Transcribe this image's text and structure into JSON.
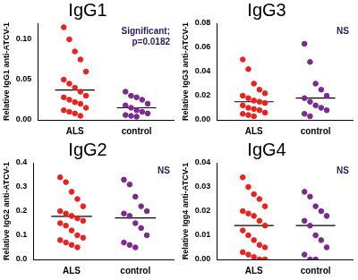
{
  "chart_data": [
    {
      "type": "strip",
      "title": "IgG1",
      "y_label": "Relative IgG1 anti-ATCV-1",
      "categories": [
        "ALS",
        "control"
      ],
      "values": [
        [
          0.115,
          0.1,
          0.085,
          0.075,
          0.06,
          0.05,
          0.045,
          0.04,
          0.035,
          0.03,
          0.028,
          0.025,
          0.022,
          0.02,
          0.015,
          0.012,
          0.01,
          0.008,
          0.005
        ],
        [
          0.035,
          0.03,
          0.028,
          0.025,
          0.02,
          0.018,
          0.015,
          0.012,
          0.01,
          0.008,
          0.006,
          0.005,
          0.004
        ]
      ],
      "means": [
        0.037,
        0.015
      ],
      "colors": [
        "#e8231f",
        "#7b2a8e"
      ],
      "ylim": [
        0,
        0.12
      ],
      "yticks": [
        {
          "value": 0,
          "label": "0.00"
        },
        {
          "value": 0.05,
          "label": "0.05"
        },
        {
          "value": 0.1,
          "label": "0.10"
        }
      ],
      "annotation": [
        "Significant;",
        "p=0.0182"
      ]
    },
    {
      "type": "strip",
      "title": "IgG3",
      "y_label": "Relative IgG3 anti-ATCV-1",
      "categories": [
        "ALS",
        "control"
      ],
      "values": [
        [
          0.05,
          0.042,
          0.03,
          0.025,
          0.022,
          0.02,
          0.018,
          0.016,
          0.015,
          0.014,
          0.012,
          0.01,
          0.009,
          0.008,
          0.006,
          0.005,
          0.004,
          0.003
        ],
        [
          0.063,
          0.048,
          0.03,
          0.025,
          0.02,
          0.018,
          0.015,
          0.012,
          0.01,
          0.008,
          0.005,
          0.003
        ]
      ],
      "means": [
        0.015,
        0.018
      ],
      "colors": [
        "#e8231f",
        "#7b2a8e"
      ],
      "ylim": [
        0,
        0.08
      ],
      "yticks": [
        {
          "value": 0,
          "label": "0.00"
        },
        {
          "value": 0.02,
          "label": "0.02"
        },
        {
          "value": 0.04,
          "label": "0.04"
        },
        {
          "value": 0.06,
          "label": "0.06"
        },
        {
          "value": 0.08,
          "label": "0.08"
        }
      ],
      "annotation": [
        "NS"
      ]
    },
    {
      "type": "strip",
      "title": "IgG2",
      "y_label": "Relative IgG2 anti-ATCV-1",
      "categories": [
        "ALS",
        "control"
      ],
      "values": [
        [
          0.34,
          0.32,
          0.28,
          0.25,
          0.22,
          0.2,
          0.19,
          0.18,
          0.17,
          0.16,
          0.15,
          0.14,
          0.12,
          0.1,
          0.09,
          0.08,
          0.07,
          0.06,
          0.05
        ],
        [
          0.33,
          0.31,
          0.26,
          0.22,
          0.2,
          0.19,
          0.18,
          0.15,
          0.13,
          0.1,
          0.07,
          0.06,
          0.05
        ]
      ],
      "means": [
        0.178,
        0.172
      ],
      "colors": [
        "#e8231f",
        "#7b2a8e"
      ],
      "ylim": [
        0,
        0.4
      ],
      "yticks": [
        {
          "value": 0,
          "label": "0.0"
        },
        0.1,
        0.2,
        0.3,
        0.4
      ],
      "annotation": [
        "NS"
      ]
    },
    {
      "type": "strip",
      "title": "IgG4",
      "y_label": "Relative Igg4 anti-ATCV-1",
      "categories": [
        "ALS",
        "control"
      ],
      "values": [
        [
          0.034,
          0.03,
          0.027,
          0.025,
          0.022,
          0.02,
          0.019,
          0.018,
          0.016,
          0.014,
          0.012,
          0.01,
          0.008,
          0.006,
          0.005,
          0.003,
          0.002,
          0.001,
          0,
          0
        ],
        [
          0.028,
          0.026,
          0.022,
          0.02,
          0.018,
          0.016,
          0.014,
          0.01,
          0.008,
          0.005,
          0.002,
          0,
          0
        ]
      ],
      "means": [
        0.014,
        0.014
      ],
      "colors": [
        "#e8231f",
        "#7b2a8e"
      ],
      "ylim": [
        0,
        0.04
      ],
      "yticks": [
        {
          "value": 0,
          "label": "0.00"
        },
        0.01,
        0.02,
        0.03,
        0.04
      ],
      "annotation": [
        "NS"
      ]
    }
  ]
}
